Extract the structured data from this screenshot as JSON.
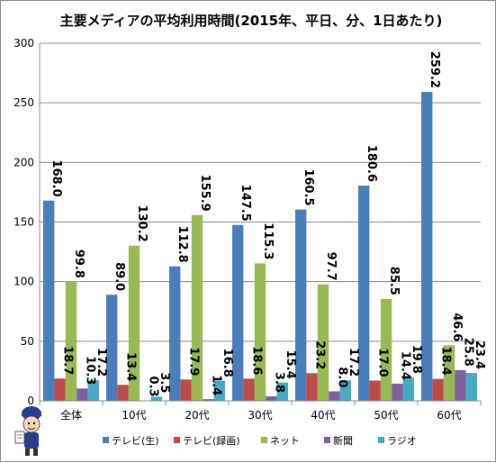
{
  "chart_data": {
    "type": "bar",
    "title": "主要メディアの平均利用時間(2015年、平日、分、1日あたり)",
    "categories": [
      "全体",
      "10代",
      "20代",
      "30代",
      "40代",
      "50代",
      "60代"
    ],
    "series": [
      {
        "name": "テレビ(生)",
        "color": "#4a7ebb",
        "values": [
          168.0,
          89.0,
          112.8,
          147.5,
          160.5,
          180.6,
          259.2
        ]
      },
      {
        "name": "テレビ(録画)",
        "color": "#be4b48",
        "values": [
          18.7,
          13.4,
          17.9,
          18.6,
          23.2,
          17.0,
          18.4
        ]
      },
      {
        "name": "ネット",
        "color": "#98b954",
        "values": [
          99.8,
          130.2,
          155.9,
          115.3,
          97.7,
          85.5,
          46.6
        ]
      },
      {
        "name": "新聞",
        "color": "#7d60a0",
        "values": [
          10.3,
          0.3,
          1.4,
          3.8,
          8.0,
          14.4,
          25.8
        ]
      },
      {
        "name": "ラジオ",
        "color": "#46aac5",
        "values": [
          17.2,
          3.5,
          16.8,
          15.4,
          17.2,
          19.8,
          23.4
        ]
      }
    ],
    "ylim": [
      0,
      300
    ],
    "yticks": [
      0,
      50,
      100,
      150,
      200,
      250,
      300
    ],
    "grid": true,
    "legend": "bottom"
  },
  "mascot_icon": "mascot-icon"
}
